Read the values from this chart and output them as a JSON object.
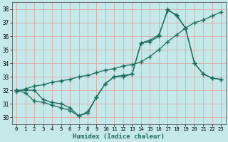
{
  "xlabel": "Humidex (Indice chaleur)",
  "xlim": [
    -0.5,
    23.5
  ],
  "ylim": [
    29.5,
    38.5
  ],
  "xticks": [
    0,
    1,
    2,
    3,
    4,
    5,
    6,
    7,
    8,
    9,
    10,
    11,
    12,
    13,
    14,
    15,
    16,
    17,
    18,
    19,
    20,
    21,
    22,
    23
  ],
  "yticks": [
    30,
    31,
    32,
    33,
    34,
    35,
    36,
    37,
    38
  ],
  "bg_color": "#c5e8e8",
  "line_color": "#1a6b5a",
  "grid_color": "#dba8a8",
  "line1_x": [
    0,
    1,
    2,
    3,
    4,
    5,
    6,
    7,
    8,
    9,
    10,
    11,
    12,
    13,
    14,
    15,
    16,
    17,
    18,
    19,
    20,
    21,
    22,
    23
  ],
  "line1_y": [
    32,
    32,
    32,
    31.3,
    31.1,
    31.0,
    30.7,
    30.1,
    30.3,
    31.5,
    32.5,
    33.0,
    33.0,
    33.2,
    35.5,
    35.6,
    36.0,
    38.0,
    37.5,
    36.6,
    34.0,
    33.2,
    32.9,
    32.8
  ],
  "line2_x": [
    0,
    1,
    2,
    3,
    4,
    5,
    6,
    7,
    8,
    9,
    10,
    11,
    12,
    13,
    14,
    15,
    16,
    17,
    18,
    19,
    20,
    21,
    22,
    23
  ],
  "line2_y": [
    31.9,
    32.1,
    32.3,
    32.4,
    32.6,
    32.7,
    32.8,
    33.0,
    33.1,
    33.3,
    33.5,
    33.6,
    33.8,
    33.9,
    34.1,
    34.5,
    35.0,
    35.6,
    36.1,
    36.6,
    37.0,
    37.2,
    37.5,
    37.8
  ],
  "line3_x": [
    0,
    1,
    2,
    3,
    4,
    5,
    6,
    7,
    8,
    9,
    10,
    11,
    12,
    13,
    14,
    15,
    16,
    17,
    18,
    19,
    20,
    21,
    22,
    23
  ],
  "line3_y": [
    32,
    31.8,
    31.2,
    31.1,
    30.9,
    30.7,
    30.5,
    30.1,
    30.4,
    31.5,
    32.5,
    33.0,
    33.1,
    33.2,
    35.5,
    35.7,
    36.1,
    37.9,
    37.6,
    36.6,
    34.0,
    33.2,
    32.9,
    32.8
  ]
}
